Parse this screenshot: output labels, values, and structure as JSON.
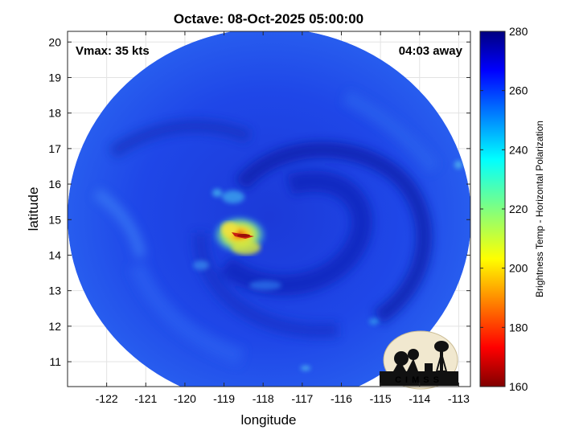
{
  "title": "Octave: 08-Oct-2025 05:00:00",
  "annotations": {
    "vmax": "Vmax: 35 kts",
    "time_away": "04:03 away"
  },
  "axes": {
    "xlabel": "longitude",
    "ylabel": "latitude",
    "xlim": [
      -123.0,
      -112.7
    ],
    "ylim": [
      10.3,
      20.3
    ],
    "xticks": [
      -122,
      -121,
      -120,
      -119,
      -118,
      -117,
      -116,
      -115,
      -114,
      -113
    ],
    "xtick_labels": [
      "-122",
      "-121",
      "-120",
      "-119",
      "-118",
      "-117",
      "-116",
      "-115",
      "-114",
      "-113"
    ],
    "yticks": [
      11,
      12,
      13,
      14,
      15,
      16,
      17,
      18,
      19,
      20
    ],
    "ytick_labels": [
      "11",
      "12",
      "13",
      "14",
      "15",
      "16",
      "17",
      "18",
      "19",
      "20"
    ],
    "grid": true
  },
  "colorbar": {
    "label": "Brightness Temp - Horizontal Polarization",
    "range": [
      160,
      280
    ],
    "ticks": [
      160,
      180,
      200,
      220,
      240,
      260,
      280
    ],
    "tick_labels": [
      "160",
      "180",
      "200",
      "220",
      "240",
      "260",
      "280"
    ],
    "colormap": "jet"
  },
  "swath": {
    "center_lon": -117.85,
    "center_lat": 15.23,
    "background_tb": 262,
    "cold_cloud_center_lon": -118.6,
    "cold_cloud_center_lat": 14.55,
    "min_tb": 175
  },
  "logo": {
    "text": "CIMSS"
  },
  "colors": {
    "ocean_blue": "#1f3fe0",
    "deep_blue": "#0b1db0",
    "cold_yellow": "#f2e23c",
    "cold_red": "#c81e12"
  }
}
